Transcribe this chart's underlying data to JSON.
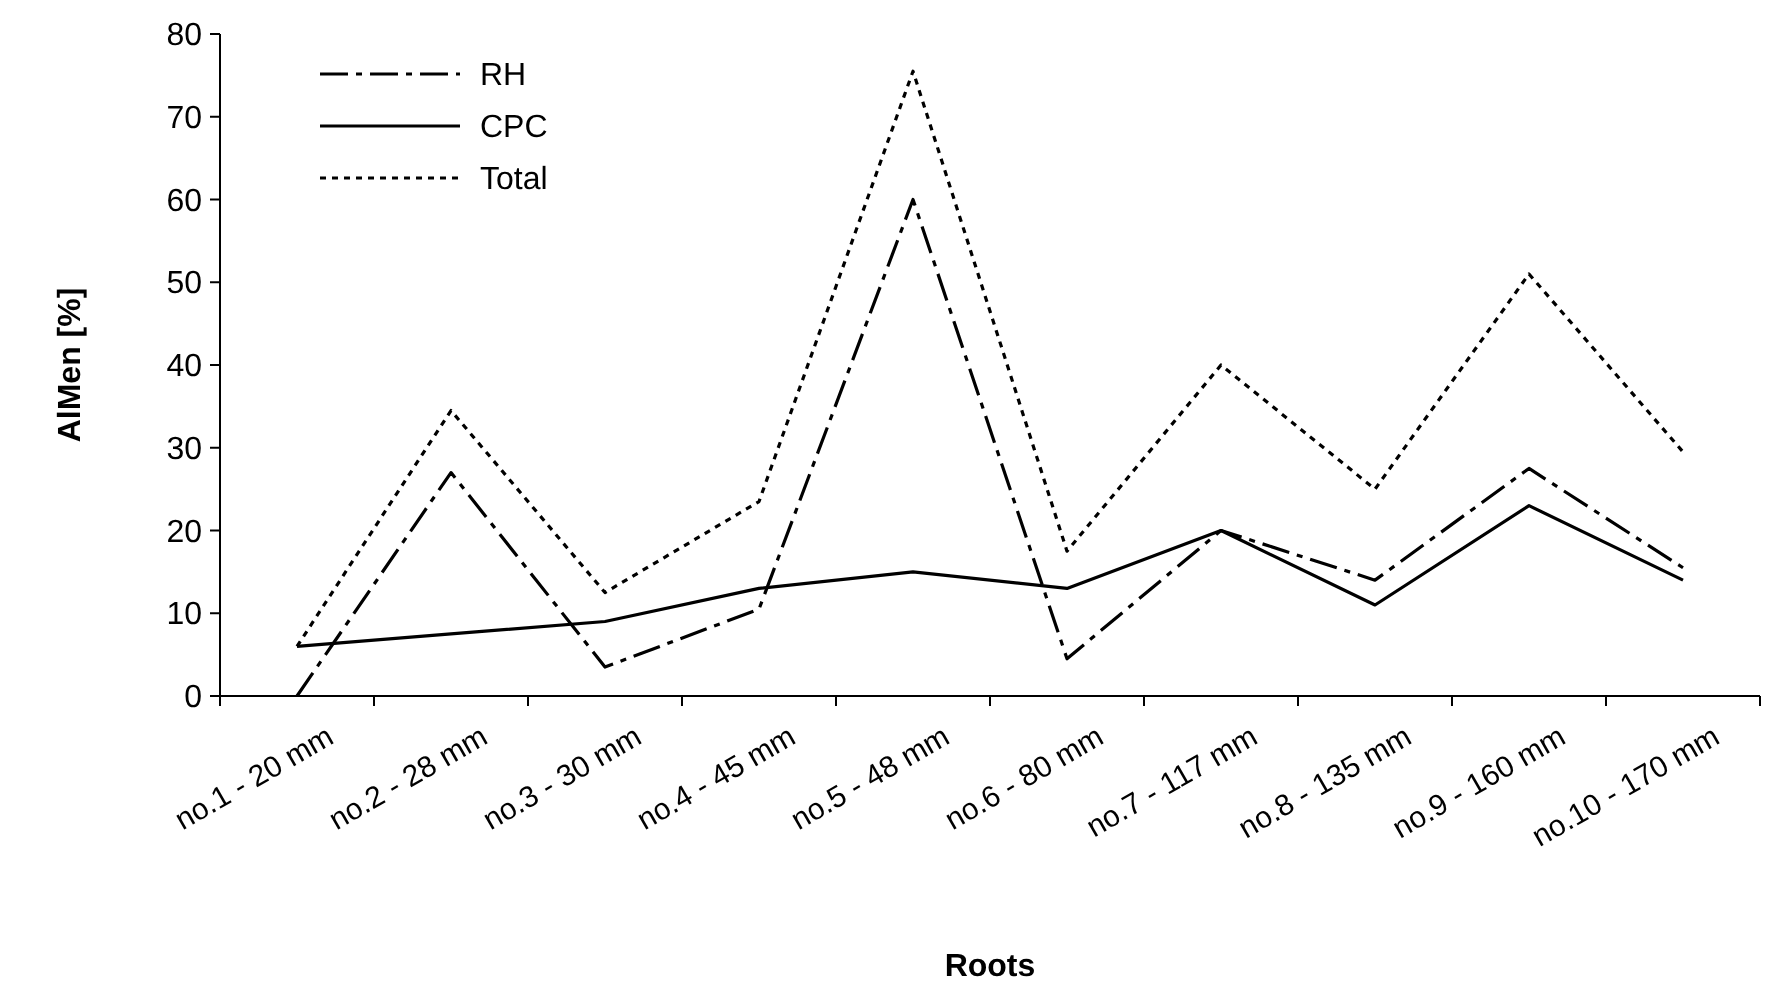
{
  "chart_data": {
    "type": "line",
    "xlabel": "Roots",
    "ylabel": "AlMen [%]",
    "categories": [
      "no.1 - 20 mm",
      "no.2 - 28 mm",
      "no.3 - 30 mm",
      "no.4 - 45 mm",
      "no.5 - 48 mm",
      "no.6 - 80 mm",
      "no.7 - 117 mm",
      "no.8 - 135 mm",
      "no.9 - 160 mm",
      "no.10 - 170 mm"
    ],
    "series": [
      {
        "name": "RH",
        "color": "#000000",
        "line_style": "dashdot",
        "values": [
          0,
          27,
          3.5,
          10.5,
          60,
          4.5,
          20,
          14,
          27.5,
          15.5
        ]
      },
      {
        "name": "CPC",
        "color": "#000000",
        "line_style": "solid",
        "values": [
          6,
          7.5,
          9,
          13,
          15,
          13,
          20,
          11,
          23,
          14
        ]
      },
      {
        "name": "Total",
        "color": "#000000",
        "line_style": "dotted",
        "values": [
          6,
          34.5,
          12.5,
          23.5,
          75.5,
          17.5,
          40,
          25,
          51,
          29.5
        ]
      }
    ],
    "ylim": [
      0,
      80
    ],
    "yticks": [
      0,
      10,
      20,
      30,
      40,
      50,
      60,
      70,
      80
    ],
    "grid": false,
    "legend": "top left",
    "marker": "none"
  }
}
